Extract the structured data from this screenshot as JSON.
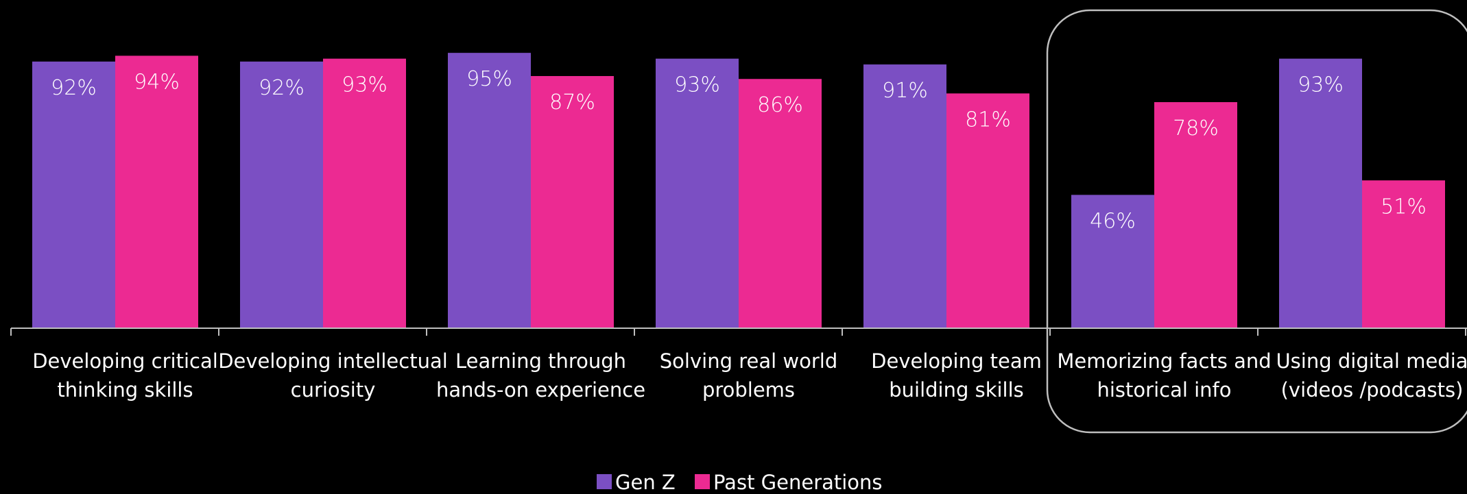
{
  "chart_data": {
    "type": "bar",
    "categories": [
      [
        "Developing critical",
        "thinking skills"
      ],
      [
        "Developing intellectual",
        "curiosity"
      ],
      [
        "Learning through",
        "hands-on experience"
      ],
      [
        "Solving real world",
        "problems"
      ],
      [
        "Developing team",
        "building skills"
      ],
      [
        "Memorizing facts and",
        "historical info"
      ],
      [
        "Using digital media",
        "(videos /podcasts)"
      ]
    ],
    "series": [
      {
        "name": "Gen Z",
        "color": "#7B4FC3",
        "values": [
          92,
          92,
          95,
          93,
          91,
          46,
          93
        ],
        "labels": [
          "92%",
          "92%",
          "95%",
          "93%",
          "91%",
          "46%",
          "93%"
        ]
      },
      {
        "name": "Past Generations",
        "color": "#EC2A92",
        "values": [
          94,
          93,
          87,
          86,
          81,
          78,
          51
        ],
        "labels": [
          "94%",
          "93%",
          "87%",
          "86%",
          "81%",
          "78%",
          "51%"
        ]
      }
    ],
    "ylim": [
      0,
      100
    ],
    "grid": false,
    "legend_position": "bottom-center",
    "highlighted_categories": [
      5,
      6
    ],
    "axis_color": "#BFBFBF",
    "highlight_color": "#BFBFBF"
  }
}
